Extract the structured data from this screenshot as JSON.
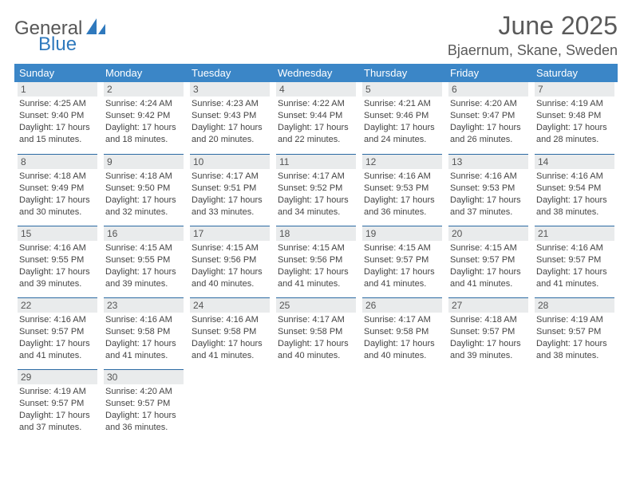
{
  "brand": {
    "word1": "General",
    "word2": "Blue",
    "text_color": "#575757",
    "accent_color": "#2f79bd"
  },
  "title": "June 2025",
  "location": "Bjaernum, Skane, Sweden",
  "palette": {
    "header_bg": "#3b86c7",
    "header_fg": "#ffffff",
    "daynum_bg": "#e9ebec",
    "rule_color": "#2b6aa3",
    "page_bg": "#ffffff",
    "text_color": "#444444"
  },
  "weekdays": [
    "Sunday",
    "Monday",
    "Tuesday",
    "Wednesday",
    "Thursday",
    "Friday",
    "Saturday"
  ],
  "weeks": [
    [
      {
        "n": "1",
        "sr": "Sunrise: 4:25 AM",
        "ss": "Sunset: 9:40 PM",
        "dl1": "Daylight: 17 hours",
        "dl2": "and 15 minutes."
      },
      {
        "n": "2",
        "sr": "Sunrise: 4:24 AM",
        "ss": "Sunset: 9:42 PM",
        "dl1": "Daylight: 17 hours",
        "dl2": "and 18 minutes."
      },
      {
        "n": "3",
        "sr": "Sunrise: 4:23 AM",
        "ss": "Sunset: 9:43 PM",
        "dl1": "Daylight: 17 hours",
        "dl2": "and 20 minutes."
      },
      {
        "n": "4",
        "sr": "Sunrise: 4:22 AM",
        "ss": "Sunset: 9:44 PM",
        "dl1": "Daylight: 17 hours",
        "dl2": "and 22 minutes."
      },
      {
        "n": "5",
        "sr": "Sunrise: 4:21 AM",
        "ss": "Sunset: 9:46 PM",
        "dl1": "Daylight: 17 hours",
        "dl2": "and 24 minutes."
      },
      {
        "n": "6",
        "sr": "Sunrise: 4:20 AM",
        "ss": "Sunset: 9:47 PM",
        "dl1": "Daylight: 17 hours",
        "dl2": "and 26 minutes."
      },
      {
        "n": "7",
        "sr": "Sunrise: 4:19 AM",
        "ss": "Sunset: 9:48 PM",
        "dl1": "Daylight: 17 hours",
        "dl2": "and 28 minutes."
      }
    ],
    [
      {
        "n": "8",
        "sr": "Sunrise: 4:18 AM",
        "ss": "Sunset: 9:49 PM",
        "dl1": "Daylight: 17 hours",
        "dl2": "and 30 minutes."
      },
      {
        "n": "9",
        "sr": "Sunrise: 4:18 AM",
        "ss": "Sunset: 9:50 PM",
        "dl1": "Daylight: 17 hours",
        "dl2": "and 32 minutes."
      },
      {
        "n": "10",
        "sr": "Sunrise: 4:17 AM",
        "ss": "Sunset: 9:51 PM",
        "dl1": "Daylight: 17 hours",
        "dl2": "and 33 minutes."
      },
      {
        "n": "11",
        "sr": "Sunrise: 4:17 AM",
        "ss": "Sunset: 9:52 PM",
        "dl1": "Daylight: 17 hours",
        "dl2": "and 34 minutes."
      },
      {
        "n": "12",
        "sr": "Sunrise: 4:16 AM",
        "ss": "Sunset: 9:53 PM",
        "dl1": "Daylight: 17 hours",
        "dl2": "and 36 minutes."
      },
      {
        "n": "13",
        "sr": "Sunrise: 4:16 AM",
        "ss": "Sunset: 9:53 PM",
        "dl1": "Daylight: 17 hours",
        "dl2": "and 37 minutes."
      },
      {
        "n": "14",
        "sr": "Sunrise: 4:16 AM",
        "ss": "Sunset: 9:54 PM",
        "dl1": "Daylight: 17 hours",
        "dl2": "and 38 minutes."
      }
    ],
    [
      {
        "n": "15",
        "sr": "Sunrise: 4:16 AM",
        "ss": "Sunset: 9:55 PM",
        "dl1": "Daylight: 17 hours",
        "dl2": "and 39 minutes."
      },
      {
        "n": "16",
        "sr": "Sunrise: 4:15 AM",
        "ss": "Sunset: 9:55 PM",
        "dl1": "Daylight: 17 hours",
        "dl2": "and 39 minutes."
      },
      {
        "n": "17",
        "sr": "Sunrise: 4:15 AM",
        "ss": "Sunset: 9:56 PM",
        "dl1": "Daylight: 17 hours",
        "dl2": "and 40 minutes."
      },
      {
        "n": "18",
        "sr": "Sunrise: 4:15 AM",
        "ss": "Sunset: 9:56 PM",
        "dl1": "Daylight: 17 hours",
        "dl2": "and 41 minutes."
      },
      {
        "n": "19",
        "sr": "Sunrise: 4:15 AM",
        "ss": "Sunset: 9:57 PM",
        "dl1": "Daylight: 17 hours",
        "dl2": "and 41 minutes."
      },
      {
        "n": "20",
        "sr": "Sunrise: 4:15 AM",
        "ss": "Sunset: 9:57 PM",
        "dl1": "Daylight: 17 hours",
        "dl2": "and 41 minutes."
      },
      {
        "n": "21",
        "sr": "Sunrise: 4:16 AM",
        "ss": "Sunset: 9:57 PM",
        "dl1": "Daylight: 17 hours",
        "dl2": "and 41 minutes."
      }
    ],
    [
      {
        "n": "22",
        "sr": "Sunrise: 4:16 AM",
        "ss": "Sunset: 9:57 PM",
        "dl1": "Daylight: 17 hours",
        "dl2": "and 41 minutes."
      },
      {
        "n": "23",
        "sr": "Sunrise: 4:16 AM",
        "ss": "Sunset: 9:58 PM",
        "dl1": "Daylight: 17 hours",
        "dl2": "and 41 minutes."
      },
      {
        "n": "24",
        "sr": "Sunrise: 4:16 AM",
        "ss": "Sunset: 9:58 PM",
        "dl1": "Daylight: 17 hours",
        "dl2": "and 41 minutes."
      },
      {
        "n": "25",
        "sr": "Sunrise: 4:17 AM",
        "ss": "Sunset: 9:58 PM",
        "dl1": "Daylight: 17 hours",
        "dl2": "and 40 minutes."
      },
      {
        "n": "26",
        "sr": "Sunrise: 4:17 AM",
        "ss": "Sunset: 9:58 PM",
        "dl1": "Daylight: 17 hours",
        "dl2": "and 40 minutes."
      },
      {
        "n": "27",
        "sr": "Sunrise: 4:18 AM",
        "ss": "Sunset: 9:57 PM",
        "dl1": "Daylight: 17 hours",
        "dl2": "and 39 minutes."
      },
      {
        "n": "28",
        "sr": "Sunrise: 4:19 AM",
        "ss": "Sunset: 9:57 PM",
        "dl1": "Daylight: 17 hours",
        "dl2": "and 38 minutes."
      }
    ],
    [
      {
        "n": "29",
        "sr": "Sunrise: 4:19 AM",
        "ss": "Sunset: 9:57 PM",
        "dl1": "Daylight: 17 hours",
        "dl2": "and 37 minutes."
      },
      {
        "n": "30",
        "sr": "Sunrise: 4:20 AM",
        "ss": "Sunset: 9:57 PM",
        "dl1": "Daylight: 17 hours",
        "dl2": "and 36 minutes."
      },
      {
        "empty": true
      },
      {
        "empty": true
      },
      {
        "empty": true
      },
      {
        "empty": true
      },
      {
        "empty": true
      }
    ]
  ]
}
